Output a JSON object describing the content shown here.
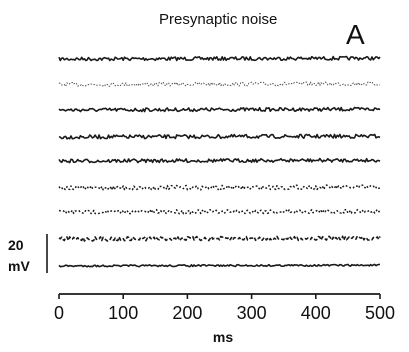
{
  "chart_data": {
    "type": "line",
    "title": "Presynaptic noise",
    "panel_label": "A",
    "xlabel": "ms",
    "ylabel": "",
    "xlim": [
      0,
      500
    ],
    "x_ticks": [
      0,
      100,
      200,
      300,
      400,
      500
    ],
    "scale_bar": {
      "value": 20,
      "unit": "mV"
    },
    "grid": false,
    "legend": "none",
    "colors": {
      "trace": "#1a1a1a",
      "axis": "#1a1a1a"
    },
    "series": [
      {
        "baseline_mV": 0,
        "noise_mV": 1.2,
        "style": "solid"
      },
      {
        "baseline_mV": -8.5,
        "noise_mV": 1.3,
        "style": "light-dotted"
      },
      {
        "baseline_mV": -17,
        "noise_mV": 1.2,
        "style": "solid"
      },
      {
        "baseline_mV": -26,
        "noise_mV": 1.3,
        "style": "solid"
      },
      {
        "baseline_mV": -34,
        "noise_mV": 1.2,
        "style": "solid"
      },
      {
        "baseline_mV": -43,
        "noise_mV": 1.5,
        "style": "dotted"
      },
      {
        "baseline_mV": -51,
        "noise_mV": 1.4,
        "style": "dotted"
      },
      {
        "baseline_mV": -60,
        "noise_mV": 1.4,
        "style": "dashed"
      },
      {
        "baseline_mV": -69,
        "noise_mV": 0.6,
        "style": "solid"
      }
    ]
  }
}
